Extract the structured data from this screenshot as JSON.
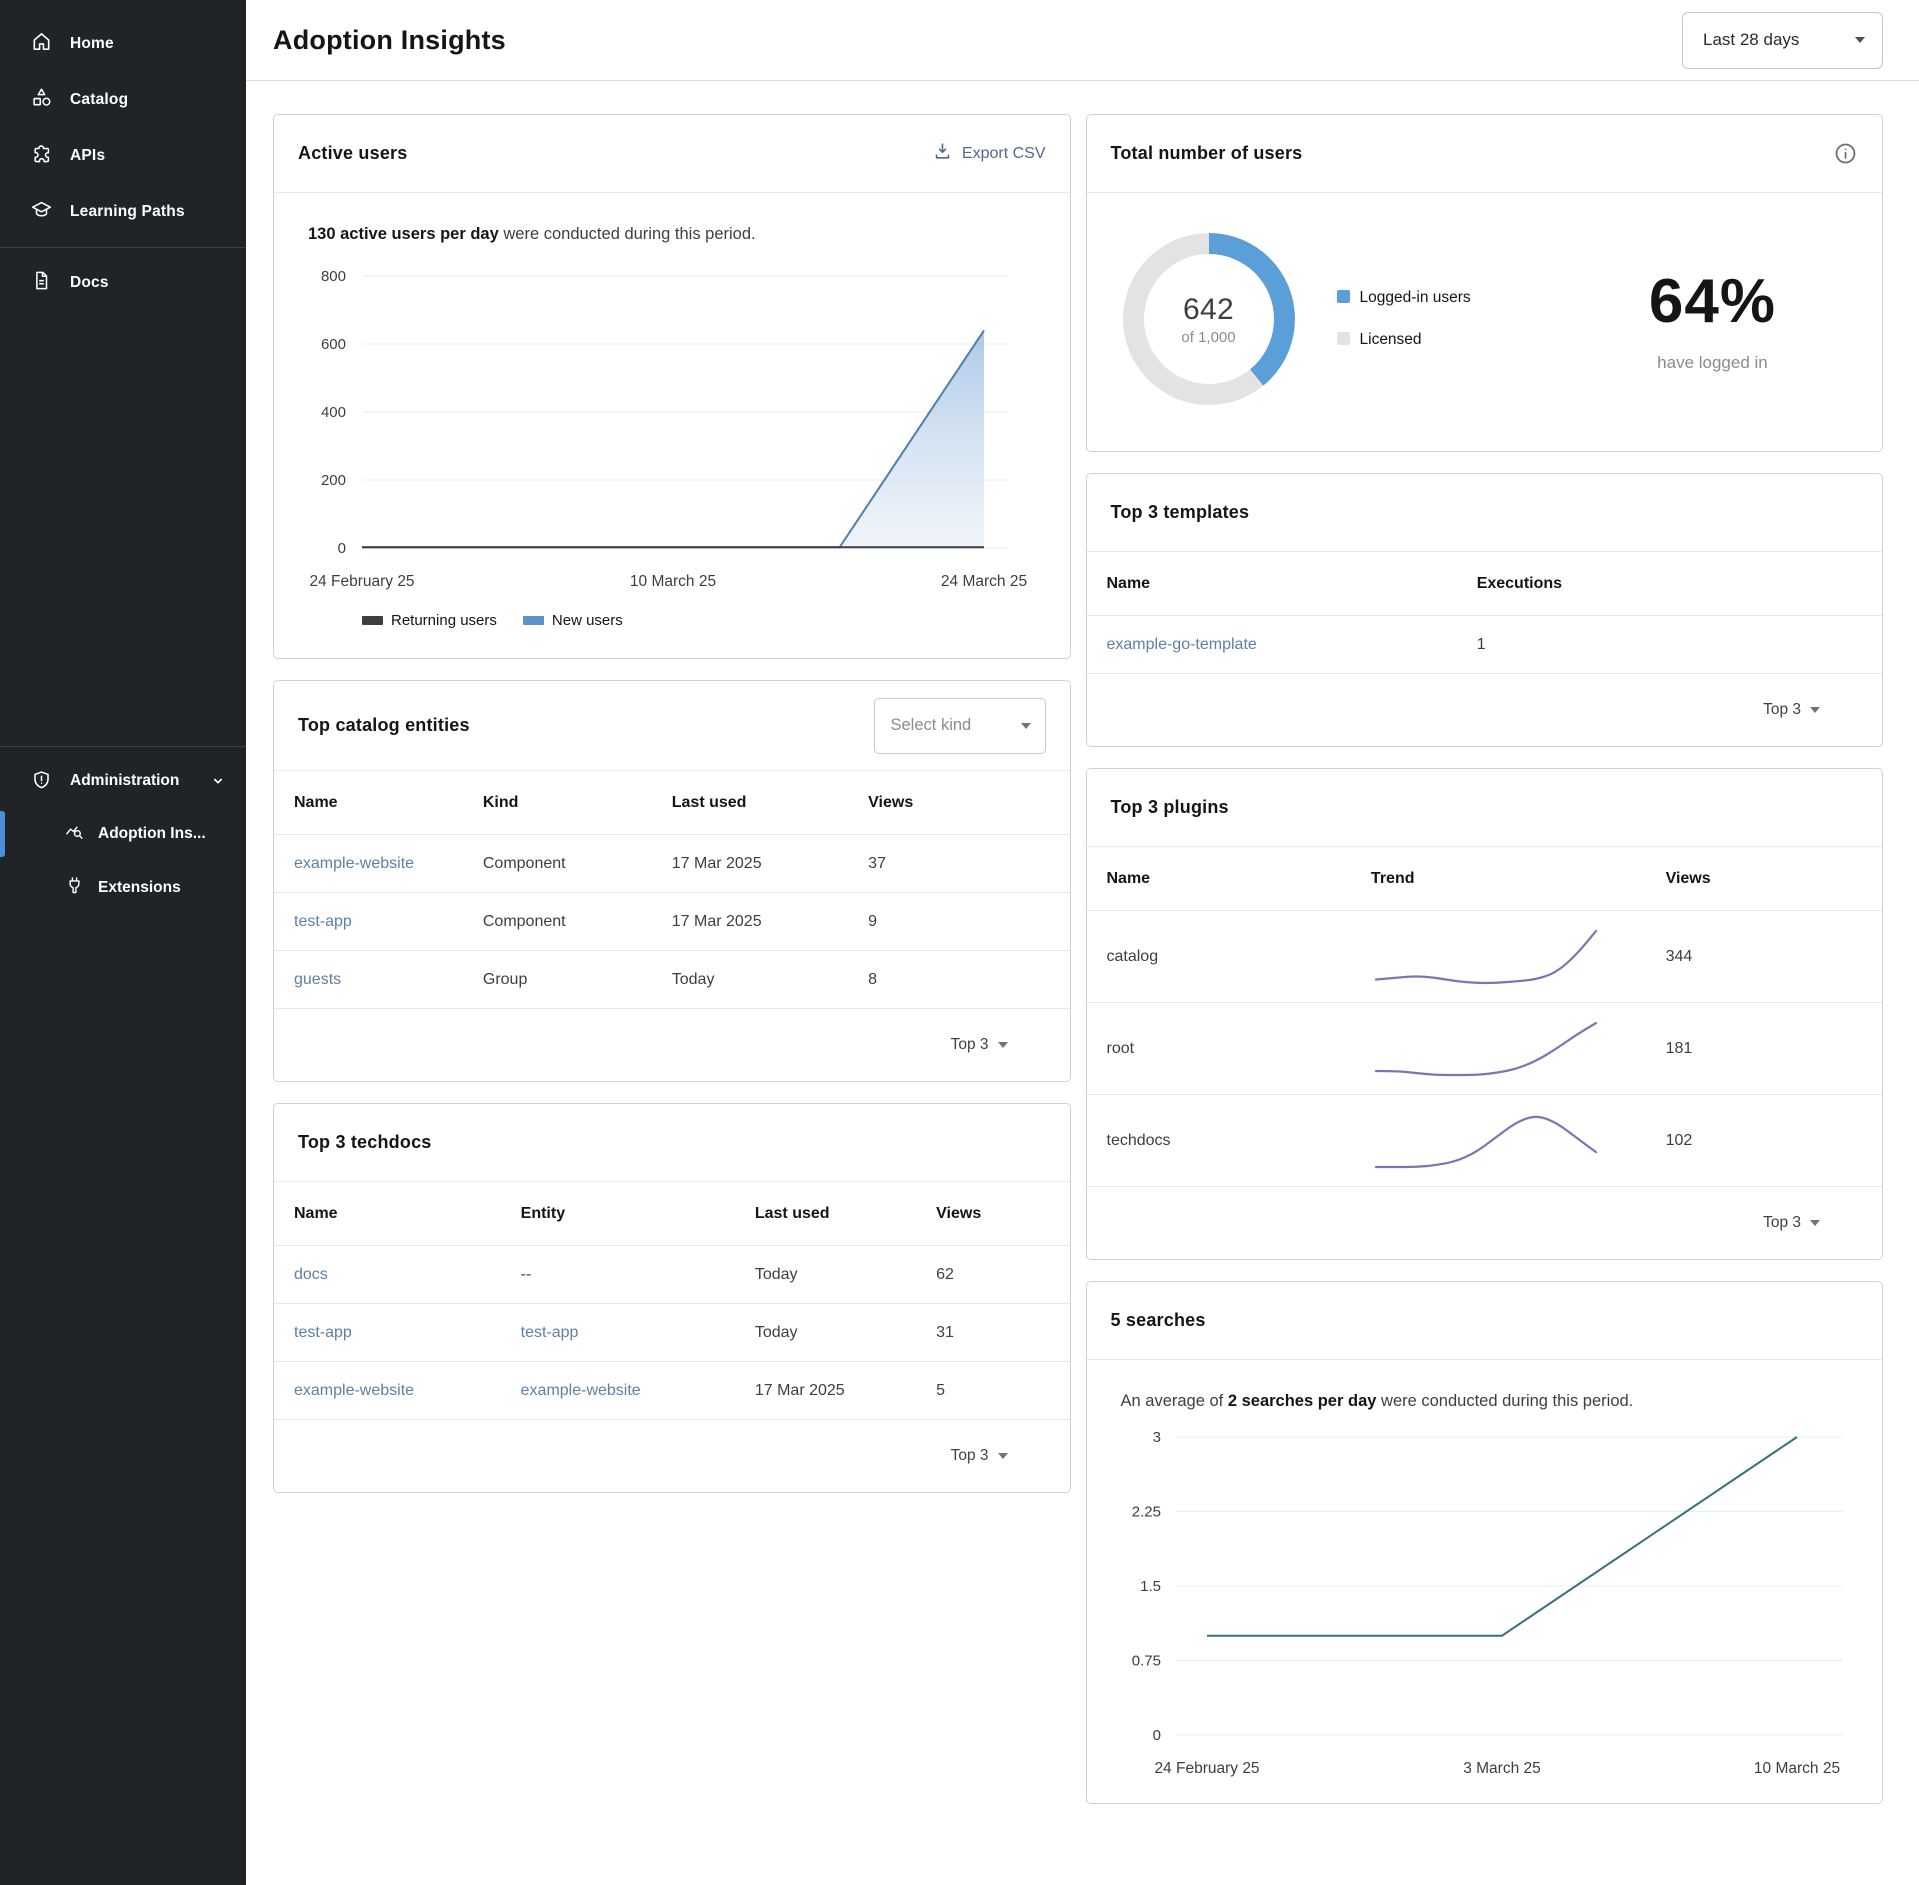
{
  "sidebar": {
    "items": [
      {
        "label": "Home",
        "icon": "home-icon"
      },
      {
        "label": "Catalog",
        "icon": "catalog-icon"
      },
      {
        "label": "APIs",
        "icon": "apis-icon"
      },
      {
        "label": "Learning Paths",
        "icon": "learning-paths-icon"
      },
      {
        "label": "Docs",
        "icon": "docs-icon"
      }
    ],
    "admin": {
      "label": "Administration",
      "items": [
        {
          "label": "Adoption Ins...",
          "active": true
        },
        {
          "label": "Extensions",
          "active": false
        }
      ]
    }
  },
  "header": {
    "title": "Adoption Insights",
    "period_select": "Last 28 days"
  },
  "cards": {
    "active_users": {
      "title": "Active users",
      "export_label": "Export CSV",
      "summary_bold": "130 active users per day",
      "summary_rest": " were conducted during this period.",
      "legend": [
        {
          "label": "Returning users",
          "color": "#3c3f42"
        },
        {
          "label": "New users",
          "color": "#5b93c9"
        }
      ]
    },
    "total_users": {
      "title": "Total number of users",
      "center_value": "642",
      "center_caption": "of 1,000",
      "legend": [
        {
          "label": "Logged-in users",
          "color": "#5b9fd9"
        },
        {
          "label": "Licensed",
          "color": "#e3e3e3"
        }
      ],
      "pct": "64%",
      "pct_caption": "have logged in"
    },
    "top_templates": {
      "title": "Top 3 templates",
      "columns": [
        "Name",
        "Executions"
      ],
      "rows": [
        {
          "name": "example-go-template",
          "executions": "1"
        }
      ],
      "footer": "Top 3"
    },
    "top_catalog": {
      "title": "Top catalog entities",
      "kind_placeholder": "Select kind",
      "columns": [
        "Name",
        "Kind",
        "Last used",
        "Views"
      ],
      "rows": [
        {
          "name": "example-website",
          "kind": "Component",
          "last_used": "17 Mar 2025",
          "views": "37"
        },
        {
          "name": "test-app",
          "kind": "Component",
          "last_used": "17 Mar 2025",
          "views": "9"
        },
        {
          "name": "guests",
          "kind": "Group",
          "last_used": "Today",
          "views": "8"
        }
      ],
      "footer": "Top 3"
    },
    "top_plugins": {
      "title": "Top 3 plugins",
      "columns": [
        "Name",
        "Trend",
        "Views"
      ],
      "rows": [
        {
          "name": "catalog",
          "views": "344"
        },
        {
          "name": "root",
          "views": "181"
        },
        {
          "name": "techdocs",
          "views": "102"
        }
      ],
      "footer": "Top 3"
    },
    "top_techdocs": {
      "title": "Top 3 techdocs",
      "columns": [
        "Name",
        "Entity",
        "Last used",
        "Views"
      ],
      "rows": [
        {
          "name": "docs",
          "entity": "--",
          "last_used": "Today",
          "views": "62"
        },
        {
          "name": "test-app",
          "entity": "test-app",
          "last_used": "Today",
          "views": "31"
        },
        {
          "name": "example-website",
          "entity": "example-website",
          "last_used": "17 Mar 2025",
          "views": "5"
        }
      ],
      "footer": "Top 3"
    },
    "searches": {
      "title": "5 searches",
      "summary_prefix": "An average of ",
      "summary_bold": "2 searches per day",
      "summary_rest": " were conducted during this period."
    }
  },
  "chart_data": [
    {
      "id": "active_users",
      "type": "area",
      "title": "Active users",
      "xlabel": "",
      "ylabel": "",
      "xmax": 28,
      "xticks": [
        {
          "x": 0,
          "label": "24 February 25"
        },
        {
          "x": 14,
          "label": "10 March 25"
        },
        {
          "x": 28,
          "label": "24 March 25"
        }
      ],
      "ylim": [
        0,
        800
      ],
      "yticks": [
        0,
        200,
        400,
        600,
        800
      ],
      "grid": true,
      "legend_position": "bottom",
      "series": [
        {
          "name": "New users",
          "color": "#4e7fae",
          "area": true,
          "points": [
            [
              0,
              2
            ],
            [
              21.5,
              2
            ],
            [
              28,
              640
            ]
          ]
        },
        {
          "name": "Returning users",
          "color": "#3c3f42",
          "area": false,
          "points": [
            [
              0,
              2
            ],
            [
              28,
              2
            ]
          ]
        }
      ]
    },
    {
      "id": "total_users",
      "type": "pie",
      "donut": true,
      "labels": [
        "Logged-in users",
        "Licensed"
      ],
      "segments": [
        642,
        1000
      ],
      "center_value": "642",
      "center_caption": "of 1,000",
      "pct_label": "64%",
      "pct_caption": "have logged in",
      "colors": [
        "#5b9fd9",
        "#e3e3e3"
      ]
    },
    {
      "id": "plugin_trends",
      "type": "line",
      "color": "#8172b2",
      "sparklines": [
        {
          "name": "catalog",
          "values": [
            10,
            11,
            12,
            11,
            9,
            8,
            8,
            9,
            10,
            14,
            24,
            38
          ]
        },
        {
          "name": "root",
          "values": [
            8,
            8,
            7,
            6,
            6,
            6,
            7,
            9,
            13,
            19,
            26,
            32
          ]
        },
        {
          "name": "techdocs",
          "values": [
            6,
            6,
            6,
            7,
            9,
            14,
            22,
            30,
            34,
            30,
            22,
            14
          ]
        }
      ]
    },
    {
      "id": "searches",
      "type": "line",
      "xmax": 14,
      "xticks": [
        {
          "x": 0,
          "label": "24 February 25"
        },
        {
          "x": 7,
          "label": "3 March 25"
        },
        {
          "x": 14,
          "label": "10 March 25"
        }
      ],
      "ylim": [
        0,
        3
      ],
      "yticks": [
        0,
        0.75,
        1.5,
        2.25,
        3
      ],
      "grid": true,
      "series": [
        {
          "name": "Searches",
          "color": "#38707c",
          "area": false,
          "points": [
            [
              0,
              1
            ],
            [
              7,
              1
            ],
            [
              14,
              3
            ]
          ]
        }
      ]
    }
  ]
}
